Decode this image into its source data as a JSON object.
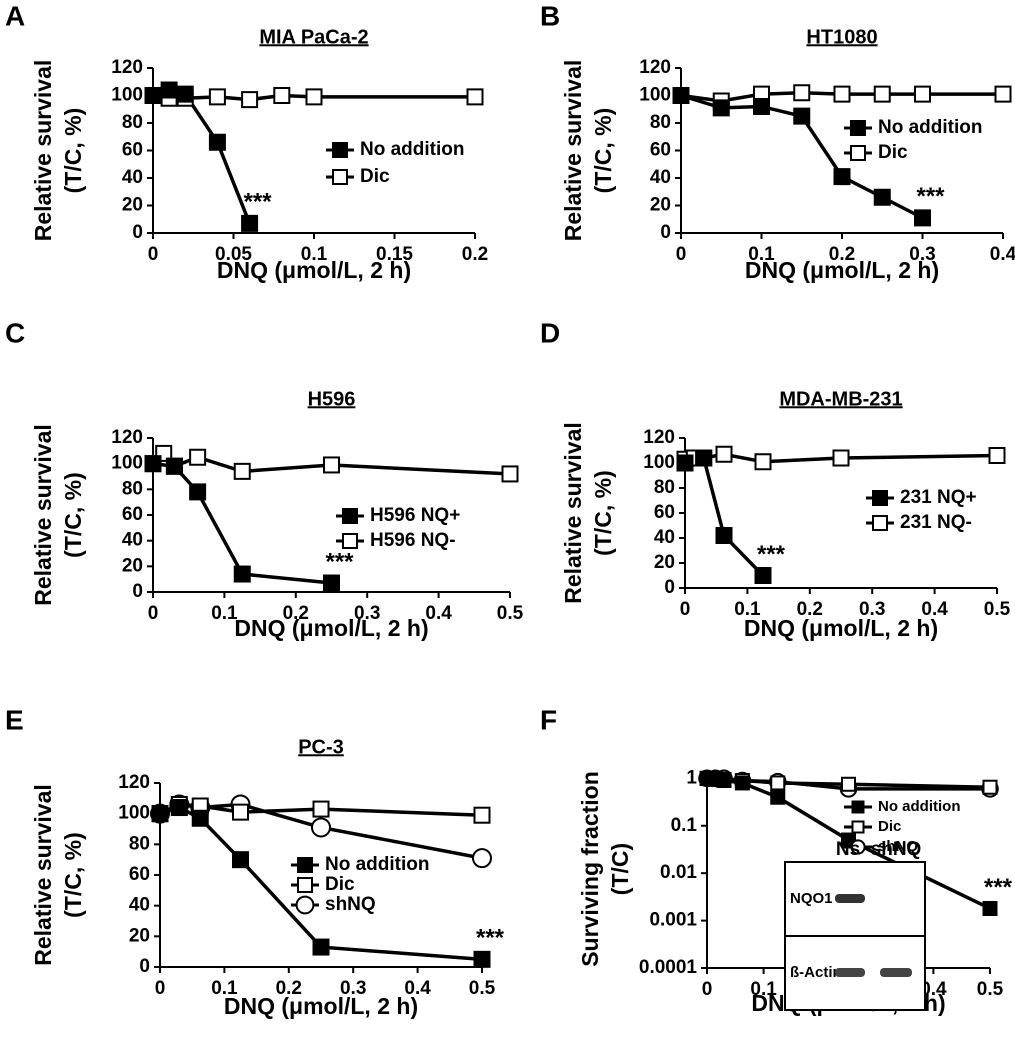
{
  "chart_data": [
    {
      "type": "line",
      "panel": "A",
      "title": "MIA PaCa-2",
      "xlabel": "DNQ (μmol/L, 2 h)",
      "ylabel": [
        "Relative survival",
        "(T/C, %)"
      ],
      "xlim": [
        0,
        0.2
      ],
      "xticks": [
        0,
        0.05,
        0.1,
        0.15,
        0.2
      ],
      "ylim": [
        0,
        120
      ],
      "yticks": [
        0,
        20,
        40,
        60,
        80,
        100,
        120
      ],
      "annotation": "***",
      "series": [
        {
          "name": "No addition",
          "color": "#000000",
          "marker": "square",
          "x": [
            0,
            0.01,
            0.02,
            0.04,
            0.06
          ],
          "values": [
            100,
            104,
            101,
            66,
            7
          ]
        },
        {
          "name": "Dic",
          "color": "#ffffff",
          "marker": "square",
          "x": [
            0,
            0.01,
            0.02,
            0.04,
            0.06,
            0.08,
            0.1,
            0.2
          ],
          "values": [
            100,
            98,
            98,
            99,
            97,
            100,
            99,
            99
          ]
        }
      ]
    },
    {
      "type": "line",
      "panel": "B",
      "title": "HT1080",
      "xlabel": "DNQ (μmol/L, 2 h)",
      "ylabel": [
        "Relative survival",
        "(T/C, %)"
      ],
      "xlim": [
        0,
        0.4
      ],
      "xticks": [
        0,
        0.1,
        0.2,
        0.3,
        0.4
      ],
      "ylim": [
        0,
        120
      ],
      "yticks": [
        0,
        20,
        40,
        60,
        80,
        100,
        120
      ],
      "annotation": "***",
      "series": [
        {
          "name": "No addition",
          "color": "#000000",
          "marker": "square",
          "x": [
            0,
            0.05,
            0.1,
            0.15,
            0.2,
            0.25,
            0.3
          ],
          "values": [
            100,
            91,
            92,
            85,
            41,
            26,
            11
          ]
        },
        {
          "name": "Dic",
          "color": "#ffffff",
          "marker": "square",
          "x": [
            0,
            0.05,
            0.1,
            0.15,
            0.2,
            0.25,
            0.3,
            0.4
          ],
          "values": [
            100,
            96,
            101,
            102,
            101,
            101,
            101,
            101
          ]
        }
      ]
    },
    {
      "type": "line",
      "panel": "C",
      "title": "H596",
      "xlabel": "DNQ (μmol/L, 2 h)",
      "ylabel": [
        "Relative survival",
        "(T/C, %)"
      ],
      "xlim": [
        0,
        0.5
      ],
      "xticks": [
        0,
        0.1,
        0.2,
        0.3,
        0.4,
        0.5
      ],
      "ylim": [
        0,
        120
      ],
      "yticks": [
        0,
        20,
        40,
        60,
        80,
        100,
        120
      ],
      "annotation": "***",
      "series": [
        {
          "name": "H596 NQ+",
          "color": "#000000",
          "marker": "square",
          "x": [
            0,
            0.03,
            0.0625,
            0.125,
            0.25
          ],
          "values": [
            100,
            98,
            78,
            14,
            7
          ]
        },
        {
          "name": "H596 NQ-",
          "color": "#ffffff",
          "marker": "square",
          "x": [
            0,
            0.015,
            0.03,
            0.0625,
            0.125,
            0.25,
            0.5
          ],
          "values": [
            100,
            108,
            98,
            105,
            94,
            99,
            92
          ]
        }
      ]
    },
    {
      "type": "line",
      "panel": "D",
      "title": "MDA-MB-231",
      "xlabel": "DNQ (μmol/L, 2 h)",
      "ylabel": [
        "Relative survival",
        "(T/C, %)"
      ],
      "xlim": [
        0,
        0.5
      ],
      "xticks": [
        0,
        0.1,
        0.2,
        0.3,
        0.4,
        0.5
      ],
      "ylim": [
        0,
        120
      ],
      "yticks": [
        0,
        20,
        40,
        60,
        80,
        100,
        120
      ],
      "annotation": "***",
      "series": [
        {
          "name": "231 NQ+",
          "color": "#000000",
          "marker": "square",
          "x": [
            0,
            0.03,
            0.0625,
            0.125
          ],
          "values": [
            100,
            104,
            42,
            10
          ]
        },
        {
          "name": "231 NQ-",
          "color": "#ffffff",
          "marker": "square",
          "x": [
            0,
            0.015,
            0.03,
            0.0625,
            0.125,
            0.25,
            0.5
          ],
          "values": [
            103,
            104,
            104,
            107,
            101,
            104,
            106
          ]
        }
      ]
    },
    {
      "type": "line",
      "panel": "E",
      "title": "PC-3",
      "xlabel": "DNQ (μmol/L, 2 h)",
      "ylabel": [
        "Relative survival",
        "(T/C, %)"
      ],
      "xlim": [
        0,
        0.5
      ],
      "xticks": [
        0,
        0.1,
        0.2,
        0.3,
        0.4,
        0.5
      ],
      "ylim": [
        0,
        120
      ],
      "yticks": [
        0,
        20,
        40,
        60,
        80,
        100,
        120
      ],
      "annotation": "***",
      "series": [
        {
          "name": "No addition",
          "color": "#000000",
          "marker": "square",
          "x": [
            0,
            0.03,
            0.0625,
            0.125,
            0.25,
            0.5
          ],
          "values": [
            100,
            104,
            97,
            70,
            13,
            5
          ]
        },
        {
          "name": "Dic",
          "color": "#ffffff",
          "marker": "square",
          "x": [
            0,
            0.03,
            0.0625,
            0.125,
            0.25,
            0.5
          ],
          "values": [
            100,
            106,
            105,
            101,
            103,
            99
          ]
        },
        {
          "name": "shNQ",
          "color": "#ffffff",
          "marker": "circle",
          "x": [
            0,
            0.03,
            0.0625,
            0.125,
            0.25,
            0.5
          ],
          "values": [
            100,
            106,
            104,
            106,
            91,
            71
          ]
        }
      ]
    },
    {
      "type": "line",
      "panel": "F",
      "xlabel": "DNQ (μmol/L, 2 h)",
      "ylabel": [
        "Surviving fraction",
        "(T/C)"
      ],
      "log_y": true,
      "xlim": [
        0,
        0.5
      ],
      "xticks": [
        0,
        0.1,
        0.2,
        0.3,
        0.4,
        0.5
      ],
      "ylim": [
        0.0001,
        1.5
      ],
      "yticks": [
        0.0001,
        0.001,
        0.01,
        0.1,
        1
      ],
      "annotation": "***",
      "inset": {
        "columns": [
          "Ns",
          "shNQ"
        ],
        "rows": [
          "NQO1",
          "ß-Actin"
        ]
      },
      "series": [
        {
          "name": "No addition",
          "color": "#000000",
          "marker": "square",
          "x": [
            0,
            0.015,
            0.03,
            0.0625,
            0.125,
            0.25,
            0.5
          ],
          "values": [
            1,
            0.95,
            0.9,
            0.8,
            0.4,
            0.05,
            0.0018
          ]
        },
        {
          "name": "Dic",
          "color": "#ffffff",
          "marker": "square",
          "x": [
            0,
            0.015,
            0.03,
            0.0625,
            0.125,
            0.25,
            0.5
          ],
          "values": [
            1,
            1,
            0.95,
            0.9,
            0.8,
            0.75,
            0.65
          ]
        },
        {
          "name": "shNQ",
          "color": "#ffffff",
          "marker": "circle",
          "x": [
            0,
            0.015,
            0.03,
            0.0625,
            0.125,
            0.25,
            0.5
          ],
          "values": [
            1,
            1,
            1,
            0.9,
            0.85,
            0.6,
            0.6
          ]
        }
      ]
    }
  ]
}
